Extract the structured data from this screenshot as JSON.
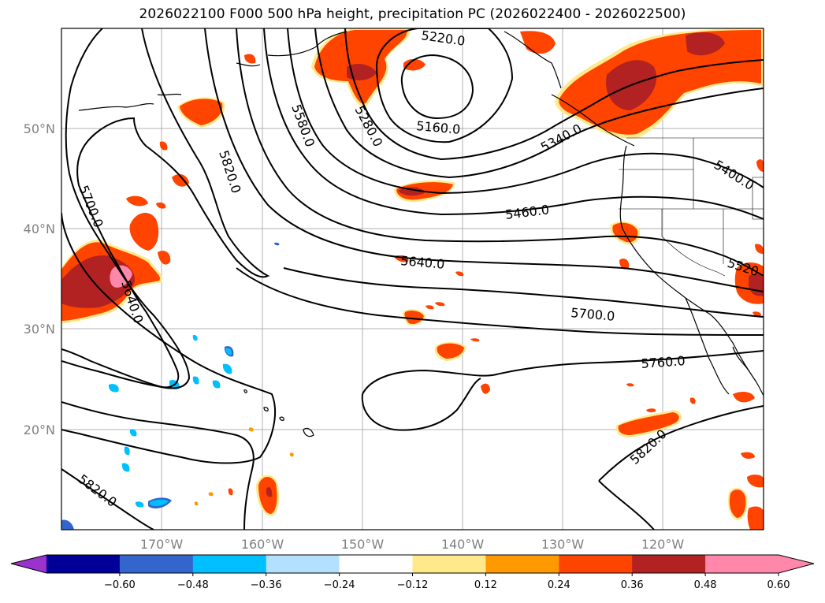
{
  "title": "2026022100 F000 500 hPa height, precipitation PC (2026022400 - 2026022500)",
  "map": {
    "lat_labels": [
      "50°N",
      "40°N",
      "30°N",
      "20°N"
    ],
    "lon_labels": [
      "170°W",
      "160°W",
      "150°W",
      "140°W",
      "130°W",
      "120°W"
    ],
    "contour_labels": [
      "5220.0",
      "5160.0",
      "5280.0",
      "5580.0",
      "5340.0",
      "5400.0",
      "5820.0",
      "5700.0",
      "5460.0",
      "5640.0",
      "5640.0",
      "5520",
      "5700.0",
      "5760.0",
      "5820.0",
      "5820.0"
    ]
  },
  "colorbar": {
    "tick_labels": [
      "−0.60",
      "−0.48",
      "−0.36",
      "−0.24",
      "−0.12",
      "0.12",
      "0.24",
      "0.36",
      "0.48",
      "0.60"
    ],
    "colors": [
      "#9933cc",
      "#000099",
      "#3366cc",
      "#00bfff",
      "#b3e0ff",
      "#ffffff",
      "#ffe98a",
      "#ff9900",
      "#ff4400",
      "#b22222",
      "#ff88aa",
      "#ff88aa"
    ]
  }
}
